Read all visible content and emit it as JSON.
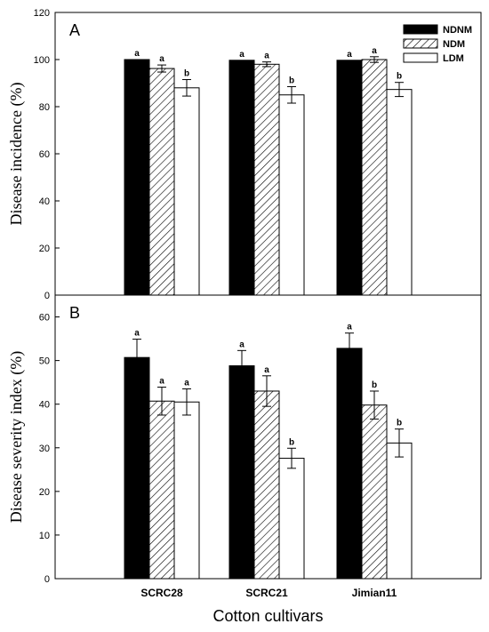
{
  "chart_data": {
    "type": "bar",
    "xlabel": "Cotton cultivars",
    "categories": [
      "SCRC28",
      "SCRC21",
      "Jimian11"
    ],
    "legend": {
      "placement": "top-right",
      "entries": [
        "NDNM",
        "NDM",
        "LDM"
      ]
    },
    "series_styles": {
      "NDNM": {
        "fill": "#000000",
        "pattern": "solid"
      },
      "NDM": {
        "fill": "#ffffff",
        "pattern": "diagonal-hatch"
      },
      "LDM": {
        "fill": "#ffffff",
        "pattern": "none"
      }
    },
    "panels": [
      {
        "panel": "A",
        "ylabel": "Disease incidence (%)",
        "ylim": [
          0,
          120
        ],
        "yticks": [
          0,
          20,
          40,
          60,
          80,
          100,
          120
        ],
        "series": [
          {
            "name": "NDNM",
            "values": [
              100,
              99.7,
              99.7
            ],
            "errors": [
              0,
              0,
              0
            ],
            "letters": [
              "a",
              "a",
              "a"
            ]
          },
          {
            "name": "NDM",
            "values": [
              96.2,
              98.0,
              100
            ],
            "errors": [
              1.5,
              1.0,
              1.2
            ],
            "letters": [
              "a",
              "a",
              "a"
            ]
          },
          {
            "name": "LDM",
            "values": [
              88.0,
              85.0,
              87.3
            ],
            "errors": [
              3.5,
              3.5,
              3.0
            ],
            "letters": [
              "b",
              "b",
              "b"
            ]
          }
        ]
      },
      {
        "panel": "B",
        "ylabel": "Disease severity index (%)",
        "ylim": [
          0,
          65
        ],
        "yticks": [
          0,
          10,
          20,
          30,
          40,
          50,
          60
        ],
        "series": [
          {
            "name": "NDNM",
            "values": [
              50.7,
              48.8,
              52.8
            ],
            "errors": [
              4.2,
              3.5,
              3.5
            ],
            "letters": [
              "a",
              "a",
              "a"
            ]
          },
          {
            "name": "NDM",
            "values": [
              40.7,
              43.0,
              39.8
            ],
            "errors": [
              3.2,
              3.5,
              3.2
            ],
            "letters": [
              "a",
              "a",
              "b"
            ]
          },
          {
            "name": "LDM",
            "values": [
              40.5,
              27.6,
              31.1
            ],
            "errors": [
              3.0,
              2.3,
              3.2
            ],
            "letters": [
              "a",
              "b",
              "b"
            ]
          }
        ]
      }
    ]
  }
}
